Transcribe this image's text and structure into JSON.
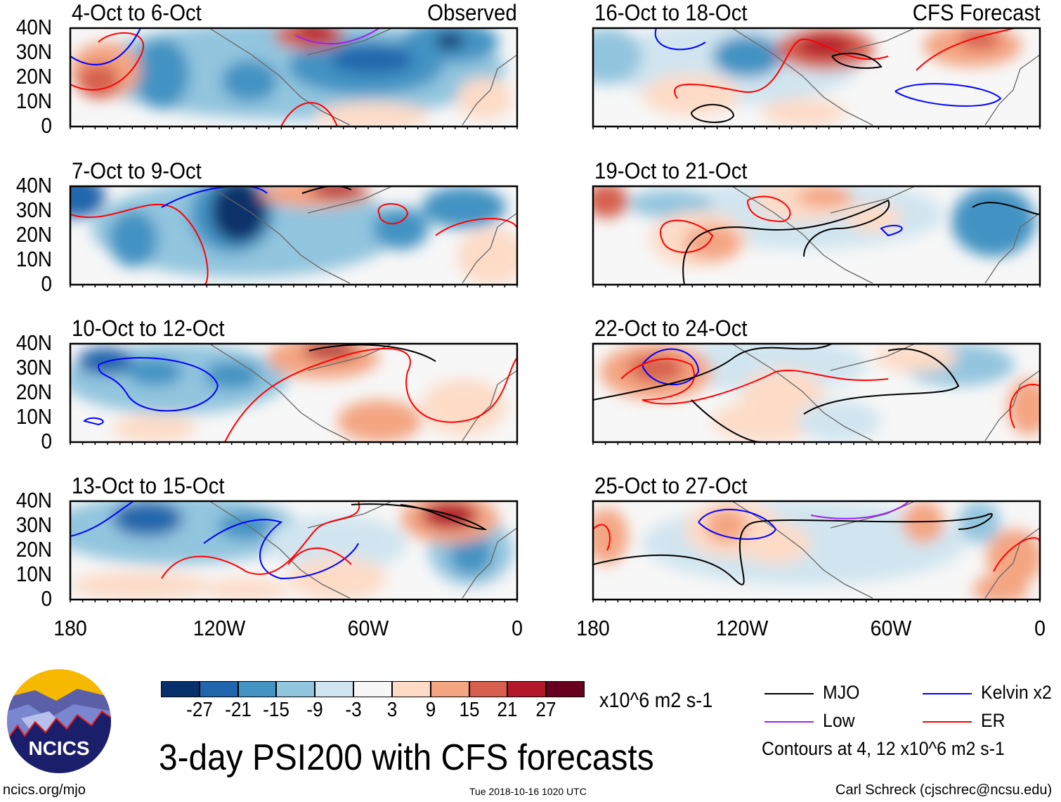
{
  "panels": [
    {
      "title": "4-Oct to 6-Oct",
      "tag": "Observed"
    },
    {
      "title": "7-Oct to 9-Oct",
      "tag": ""
    },
    {
      "title": "10-Oct to 12-Oct",
      "tag": ""
    },
    {
      "title": "13-Oct to 15-Oct",
      "tag": ""
    },
    {
      "title": "16-Oct to 18-Oct",
      "tag": "CFS Forecast"
    },
    {
      "title": "19-Oct to 21-Oct",
      "tag": ""
    },
    {
      "title": "22-Oct to 24-Oct",
      "tag": ""
    },
    {
      "title": "25-Oct to 27-Oct",
      "tag": ""
    }
  ],
  "lat_labels": [
    "40N",
    "30N",
    "20N",
    "10N",
    "0"
  ],
  "lon_labels": [
    "180",
    "120W",
    "60W",
    "0"
  ],
  "colorbar": {
    "colors": [
      "#08306b",
      "#2166ac",
      "#4393c3",
      "#92c5de",
      "#d1e5f0",
      "#f7f7f7",
      "#fddbc7",
      "#f4a582",
      "#d6604d",
      "#b2182b",
      "#67001f"
    ],
    "labels": [
      "-27",
      "-21",
      "-15",
      "-9",
      "-3",
      "3",
      "9",
      "15",
      "21",
      "27"
    ],
    "units": "x10^6 m2 s-1"
  },
  "legend": {
    "items": [
      {
        "label": "MJO",
        "color": "#000000"
      },
      {
        "label": "Kelvin x2",
        "color": "#0000ff"
      },
      {
        "label": "Low",
        "color": "#a020f0"
      },
      {
        "label": "ER",
        "color": "#ff0000"
      }
    ],
    "contours_note": "Contours at 4, 12 x10^6 m2 s-1"
  },
  "title": "3-day PSI200 with CFS forecasts",
  "logo_text": "NCICS",
  "footer": {
    "left": "ncics.org/mjo",
    "center": "Tue 2018-10-16 1020 UTC",
    "right": "Carl Schreck (cjschrec@ncsu.edu)"
  }
}
